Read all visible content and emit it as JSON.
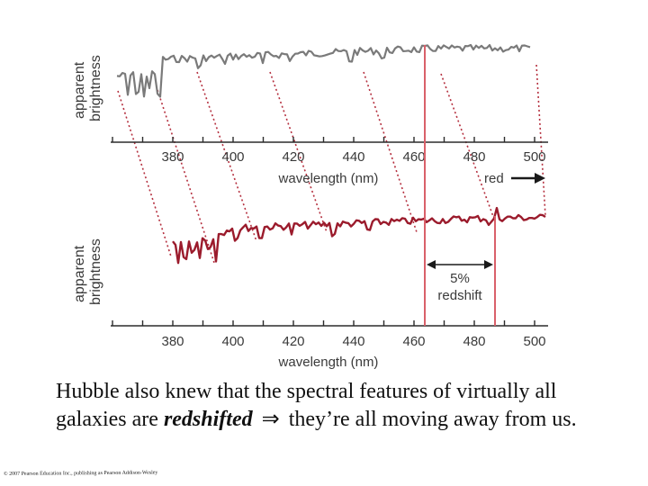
{
  "top_panel": {
    "ylabel_line1": "apparent",
    "ylabel_line2": "brightness",
    "xlabel": "wavelength (nm)",
    "red_label": "red",
    "tick_labels": [
      "380",
      "400",
      "420",
      "440",
      "460",
      "480",
      "500"
    ]
  },
  "bottom_panel": {
    "ylabel_line1": "apparent",
    "ylabel_line2": "brightness",
    "xlabel": "wavelength (nm)",
    "tick_labels": [
      "380",
      "400",
      "420",
      "440",
      "460",
      "480",
      "500"
    ],
    "shift_label_line1": "5%",
    "shift_label_line2": "redshift"
  },
  "colors": {
    "top_spectrum": "#7a7a7a",
    "bottom_spectrum": "#9b1b2c",
    "connector": "#b5303f",
    "marker": "#d9606a"
  },
  "caption": {
    "text_1": "Hubble also knew that the spectral features of virtually all galaxies are ",
    "emphasis": "redshifted",
    "arrow": "⇒",
    "text_2": "they’re all moving away from us."
  },
  "copyright": "© 2007 Pearson Education Inc., publishing as Pearson Addison-Wesley"
}
